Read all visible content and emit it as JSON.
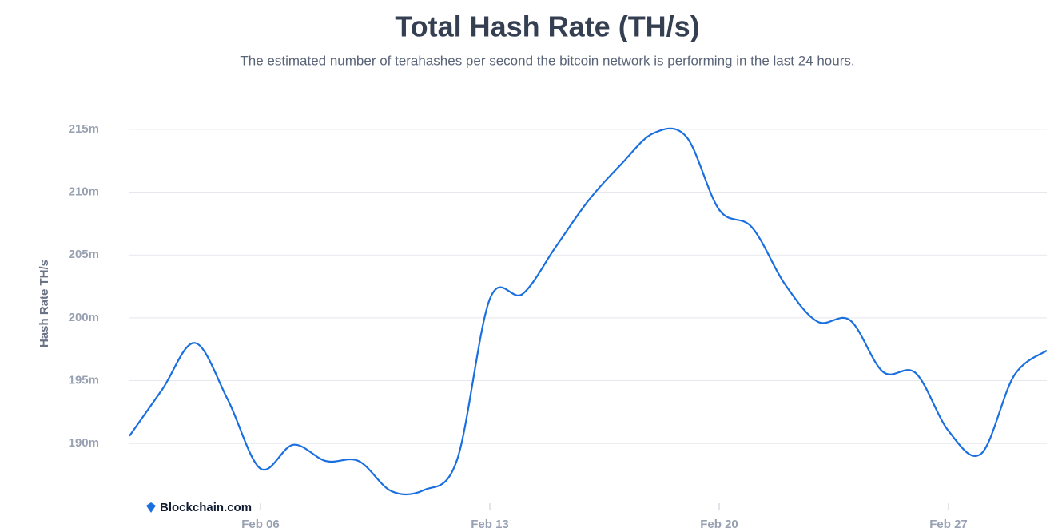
{
  "chart_data": {
    "type": "line",
    "title": "Total Hash Rate (TH/s)",
    "subtitle": "The estimated number of terahashes per second the bitcoin network is performing in the last 24 hours.",
    "y_label": "Hash Rate TH/s",
    "watermark": "Blockchain.com",
    "categories": [
      null,
      null,
      null,
      null,
      "Feb 06",
      null,
      null,
      null,
      null,
      null,
      null,
      "Feb 13",
      null,
      null,
      null,
      null,
      null,
      null,
      "Feb 20",
      null,
      null,
      null,
      null,
      null,
      null,
      "Feb 27",
      null,
      null,
      null
    ],
    "series": [
      {
        "name": "Hash Rate",
        "color": "#1a6fe0",
        "values": [
          190.6,
          194.3,
          198.0,
          193.5,
          188.0,
          189.9,
          188.6,
          188.6,
          186.2,
          186.3,
          188.7,
          201.5,
          201.9,
          205.6,
          209.3,
          212.2,
          214.7,
          214.4,
          208.6,
          207.2,
          202.7,
          199.7,
          199.8,
          195.7,
          195.6,
          191.0,
          189.2,
          195.4,
          197.4
        ]
      }
    ],
    "ylim": [
      186.2,
      216.2
    ],
    "yticks": [
      {
        "value": 190,
        "label": "190m"
      },
      {
        "value": 195,
        "label": "195m"
      },
      {
        "value": 200,
        "label": "200m"
      },
      {
        "value": 205,
        "label": "205m"
      },
      {
        "value": 210,
        "label": "210m"
      },
      {
        "value": 215,
        "label": "215m"
      }
    ],
    "grid": true
  }
}
